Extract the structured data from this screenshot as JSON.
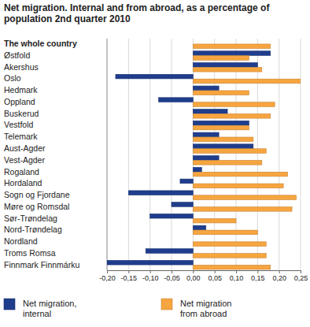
{
  "chart_data": {
    "type": "bar",
    "orientation": "horizontal",
    "title": "Net migration. Internal and from abroad, as a percentage of population 2nd quarter 2010",
    "categories": [
      "The whole country",
      "Østfold",
      "Akershus",
      "Oslo",
      "Hedmark",
      "Oppland",
      "Buskerud",
      "Vestfold",
      "Telemark",
      "Aust-Agder",
      "Vest-Agder",
      "Rogaland",
      "Hordaland",
      "Sogn og Fjordane",
      "Møre og Romsdal",
      "Sør-Trøndelag",
      "Nord-Trøndelag",
      "Nordland",
      "Troms Romsa",
      "Finnmark Finnmárku"
    ],
    "series": [
      {
        "name": "Net migration, internal",
        "color": "#1f3d8c",
        "values": [
          0,
          0.18,
          0.15,
          -0.18,
          0.06,
          -0.08,
          0.08,
          0.13,
          0.06,
          0.14,
          0.06,
          0.02,
          -0.03,
          -0.15,
          -0.05,
          -0.1,
          0.03,
          0.0,
          -0.11,
          -0.2
        ]
      },
      {
        "name": "Net migration from abroad",
        "color": "#f7a540",
        "values": [
          0.18,
          0.13,
          0.16,
          0.25,
          0.13,
          0.19,
          0.18,
          0.13,
          0.14,
          0.17,
          0.16,
          0.22,
          0.21,
          0.24,
          0.23,
          0.1,
          0.15,
          0.17,
          0.17,
          0.18
        ]
      }
    ],
    "xlim": [
      -0.2,
      0.25
    ],
    "xticks": [
      {
        "value": -0.2,
        "label": "-0,20"
      },
      {
        "value": -0.15,
        "label": "-0,15"
      },
      {
        "value": -0.1,
        "label": "-0,10"
      },
      {
        "value": -0.05,
        "label": "-0,05"
      },
      {
        "value": 0,
        "label": "0,00"
      },
      {
        "value": 0.05,
        "label": "0,05"
      },
      {
        "value": 0.1,
        "label": "0,10"
      },
      {
        "value": 0.15,
        "label": "0,15"
      },
      {
        "value": 0.2,
        "label": "0,20"
      },
      {
        "value": 0.25,
        "label": "0,25"
      }
    ],
    "grid": true,
    "legend": "bottom"
  }
}
